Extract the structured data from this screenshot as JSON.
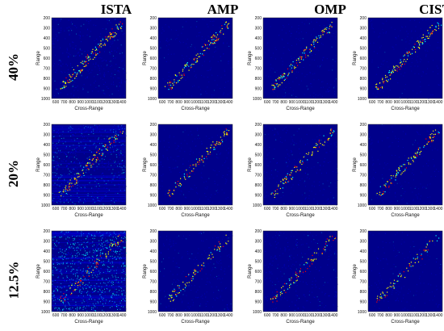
{
  "columns": [
    "ISTA",
    "AMP",
    "OMP",
    "CIST"
  ],
  "rows": [
    "40%",
    "20%",
    "12.5%"
  ],
  "chart_data": {
    "type": "heatmap",
    "panels_grid": {
      "rows": 3,
      "cols": 4
    },
    "xlabel": "Cross-Range",
    "ylabel": "Range",
    "xlim": [
      550,
      1450
    ],
    "ylim": [
      1000,
      200
    ],
    "xticks": [
      600,
      700,
      800,
      900,
      1000,
      1100,
      1200,
      1300,
      1400
    ],
    "yticks": [
      200,
      300,
      400,
      500,
      600,
      700,
      800,
      900,
      1000
    ],
    "colormap": [
      "#000080",
      "#0000ff",
      "#00ffff",
      "#ffff00",
      "#ff0000"
    ],
    "background": "#00008b",
    "panels": [
      {
        "row": "40%",
        "method": "ISTA",
        "noise": 0.25,
        "density": 0.12
      },
      {
        "row": "40%",
        "method": "AMP",
        "noise": 0.08,
        "density": 0.1
      },
      {
        "row": "40%",
        "method": "OMP",
        "noise": 0.1,
        "density": 0.1
      },
      {
        "row": "40%",
        "method": "CIST",
        "noise": 0.08,
        "density": 0.11
      },
      {
        "row": "20%",
        "method": "ISTA",
        "noise": 0.6,
        "density": 0.09
      },
      {
        "row": "20%",
        "method": "AMP",
        "noise": 0.1,
        "density": 0.08
      },
      {
        "row": "20%",
        "method": "OMP",
        "noise": 0.14,
        "density": 0.08
      },
      {
        "row": "20%",
        "method": "CIST",
        "noise": 0.08,
        "density": 0.09
      },
      {
        "row": "12.5%",
        "method": "ISTA",
        "noise": 1.0,
        "density": 0.07
      },
      {
        "row": "12.5%",
        "method": "AMP",
        "noise": 0.15,
        "density": 0.07
      },
      {
        "row": "12.5%",
        "method": "OMP",
        "noise": 0.2,
        "density": 0.07
      },
      {
        "row": "12.5%",
        "method": "CIST",
        "noise": 0.08,
        "density": 0.06
      }
    ]
  }
}
